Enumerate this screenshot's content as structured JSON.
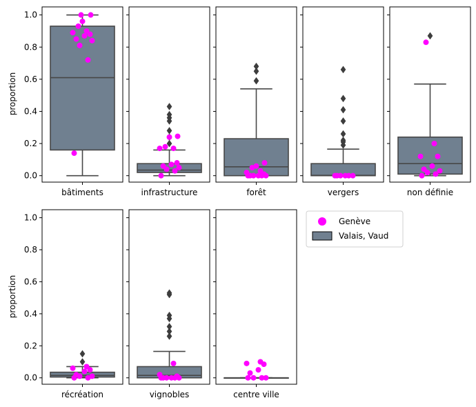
{
  "chart_data": {
    "type": "box",
    "ylabel": "proportion",
    "ylim": [
      -0.04,
      1.05
    ],
    "yticks": [
      "0.0",
      "0.2",
      "0.4",
      "0.6",
      "0.8",
      "1.0"
    ],
    "colors": {
      "box": "#708090",
      "edge": "#474747",
      "points": "#ff00ff"
    },
    "legend": {
      "position": "right of bottom row",
      "entries": [
        {
          "label": "Genève",
          "marker": "circle",
          "color": "#ff00ff"
        },
        {
          "label": "Valais, Vaud",
          "marker": "box",
          "color": "#708090"
        }
      ]
    },
    "panels": [
      {
        "category": "bâtiments",
        "box": {
          "q1": 0.16,
          "median": 0.61,
          "q3": 0.93,
          "whisker_low": 0.0,
          "whisker_high": 1.0
        },
        "outliers": [],
        "geneve": [
          0.14,
          0.72,
          0.81,
          0.84,
          0.85,
          0.87,
          0.88,
          0.89,
          0.9,
          0.93,
          0.96,
          1.0,
          1.0
        ]
      },
      {
        "category": "infrastructure",
        "box": {
          "q1": 0.02,
          "median": 0.035,
          "q3": 0.075,
          "whisker_low": 0.0,
          "whisker_high": 0.16
        },
        "outliers": [
          0.2,
          0.24,
          0.28,
          0.34,
          0.36,
          0.38,
          0.43
        ],
        "geneve": [
          0.0,
          0.03,
          0.04,
          0.05,
          0.06,
          0.07,
          0.08,
          0.17,
          0.17,
          0.18,
          0.24,
          0.245
        ]
      },
      {
        "category": "forêt",
        "box": {
          "q1": 0.0,
          "median": 0.055,
          "q3": 0.23,
          "whisker_low": 0.0,
          "whisker_high": 0.54
        },
        "outliers": [
          0.59,
          0.65,
          0.68
        ],
        "geneve": [
          0.0,
          0.0,
          0.0,
          0.0,
          0.0,
          0.0,
          0.01,
          0.02,
          0.03,
          0.05,
          0.06,
          0.08
        ]
      },
      {
        "category": "vergers",
        "box": {
          "q1": 0.0,
          "median": 0.002,
          "q3": 0.075,
          "whisker_low": 0.0,
          "whisker_high": 0.165
        },
        "outliers": [
          0.19,
          0.21,
          0.22,
          0.26,
          0.34,
          0.41,
          0.48,
          0.66
        ],
        "geneve": [
          0.0,
          0.0,
          0.0,
          0.0,
          0.0,
          0.0
        ]
      },
      {
        "category": "non définie",
        "box": {
          "q1": 0.01,
          "median": 0.075,
          "q3": 0.24,
          "whisker_low": 0.0,
          "whisker_high": 0.57
        },
        "outliers": [
          0.87
        ],
        "geneve": [
          0.0,
          0.01,
          0.02,
          0.03,
          0.04,
          0.06,
          0.12,
          0.12,
          0.2,
          0.83
        ]
      },
      {
        "category": "récréation",
        "box": {
          "q1": 0.005,
          "median": 0.015,
          "q3": 0.035,
          "whisker_low": 0.0,
          "whisker_high": 0.07
        },
        "outliers": [
          0.1,
          0.15
        ],
        "geneve": [
          0.0,
          0.0,
          0.01,
          0.01,
          0.02,
          0.04,
          0.05,
          0.06,
          0.07
        ]
      },
      {
        "category": "vignobles",
        "box": {
          "q1": 0.0,
          "median": 0.015,
          "q3": 0.07,
          "whisker_low": 0.0,
          "whisker_high": 0.165
        },
        "outliers": [
          0.26,
          0.29,
          0.32,
          0.37,
          0.39,
          0.52,
          0.53
        ],
        "geneve": [
          0.0,
          0.0,
          0.0,
          0.0,
          0.0,
          0.0,
          0.01,
          0.02,
          0.09
        ]
      },
      {
        "category": "centre ville",
        "box": {
          "q1": 0.0,
          "median": 0.0,
          "q3": 0.0,
          "whisker_low": 0.0,
          "whisker_high": 0.0
        },
        "outliers": [],
        "geneve": [
          0.0,
          0.0,
          0.0,
          0.0,
          0.03,
          0.05,
          0.085,
          0.09,
          0.1
        ]
      }
    ]
  }
}
